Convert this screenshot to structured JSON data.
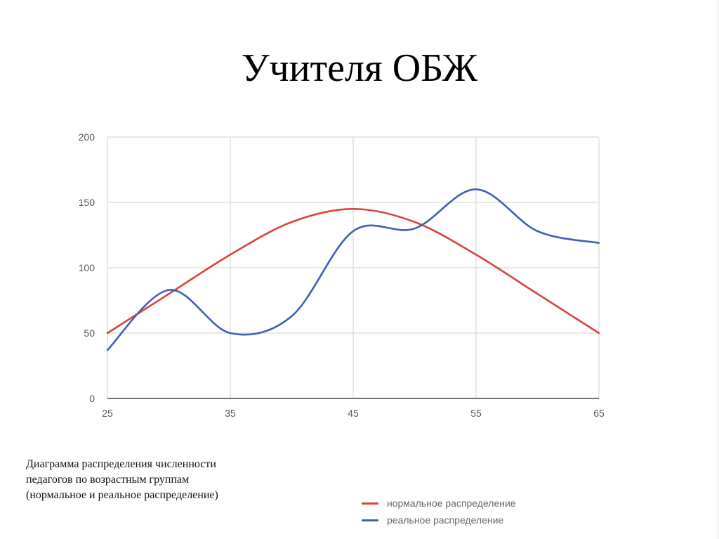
{
  "slide": {
    "title": "Учителя ОБЖ",
    "caption_lines": [
      "Диаграмма распределения численности",
      "педагогов по возрастным группам",
      "(нормальное и реальное распределение)"
    ]
  },
  "legend": {
    "items": [
      {
        "label": "нормальное распределение",
        "color": "#db4437"
      },
      {
        "label": "реальное распределение",
        "color": "#3f5fb5"
      }
    ]
  },
  "chart_data": {
    "type": "line",
    "title": "",
    "xlabel": "",
    "ylabel": "",
    "xlim": [
      25,
      65
    ],
    "ylim": [
      0,
      200
    ],
    "x_ticks": [
      25,
      35,
      45,
      55,
      65
    ],
    "y_ticks": [
      0,
      50,
      100,
      150,
      200
    ],
    "grid": true,
    "legend_position": "bottom-right",
    "smooth": true,
    "series": [
      {
        "name": "нормальное распределение",
        "color": "#db4437",
        "x": [
          25,
          30,
          35,
          40,
          45,
          50,
          55,
          60,
          65
        ],
        "values": [
          50,
          80,
          110,
          135,
          145,
          135,
          110,
          80,
          50
        ]
      },
      {
        "name": "реальное распределение",
        "color": "#3f5fb5",
        "x": [
          25,
          30,
          35,
          40,
          45,
          50,
          55,
          60,
          65
        ],
        "values": [
          37,
          83,
          50,
          63,
          128,
          130,
          160,
          128,
          119
        ]
      }
    ]
  }
}
